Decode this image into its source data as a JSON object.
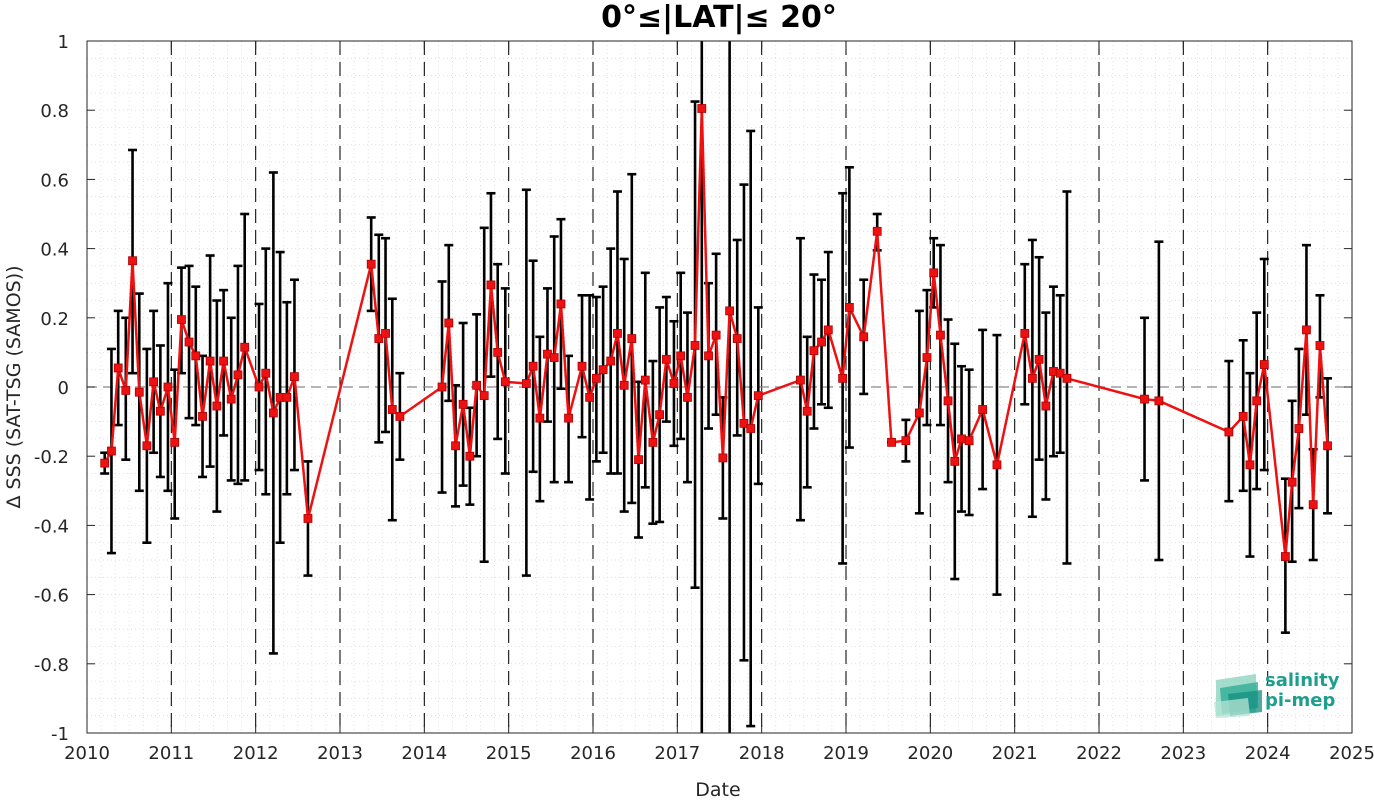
{
  "chart_data": {
    "type": "scatter",
    "title": "0°≤|LAT|≤ 20°",
    "xlabel": "Date",
    "ylabel": "Δ SSS (SAT-TSG (SAMOS))",
    "xlim": [
      2010,
      2025
    ],
    "ylim": [
      -1,
      1
    ],
    "x_ticks": [
      "2010",
      "2011",
      "2012",
      "2013",
      "2014",
      "2015",
      "2016",
      "2017",
      "2018",
      "2019",
      "2020",
      "2021",
      "2022",
      "2023",
      "2024",
      "2025"
    ],
    "y_ticks": [
      "1",
      "0.8",
      "0.6",
      "0.4",
      "0.2",
      "0",
      "-0.2",
      "-0.4",
      "-0.6",
      "-0.8",
      "-1"
    ],
    "grid": "on (dotted minor grid)",
    "year_separators": "dashed vertical lines at each year boundary",
    "zero_line": "dashed horizontal line at 0",
    "series_color": "#ee1111",
    "errorbar_color": "#000000",
    "marker": "square",
    "points": [
      {
        "x": "2010.21",
        "y": -0.22,
        "lo": -0.25,
        "hi": -0.19
      },
      {
        "x": "2010.29",
        "y": -0.185,
        "lo": -0.48,
        "hi": 0.11
      },
      {
        "x": "2010.37",
        "y": 0.055,
        "lo": -0.11,
        "hi": 0.22
      },
      {
        "x": "2010.46",
        "y": -0.01,
        "lo": -0.21,
        "hi": 0.2
      },
      {
        "x": "2010.54",
        "y": 0.365,
        "lo": 0.04,
        "hi": 0.685
      },
      {
        "x": "2010.62",
        "y": -0.015,
        "lo": -0.3,
        "hi": 0.27
      },
      {
        "x": "2010.71",
        "y": -0.17,
        "lo": -0.45,
        "hi": 0.11
      },
      {
        "x": "2010.79",
        "y": 0.015,
        "lo": -0.19,
        "hi": 0.22
      },
      {
        "x": "2010.87",
        "y": -0.07,
        "lo": -0.26,
        "hi": 0.12
      },
      {
        "x": "2010.96",
        "y": 0.0,
        "lo": -0.3,
        "hi": 0.3
      },
      {
        "x": "2011.04",
        "y": -0.16,
        "lo": -0.38,
        "hi": 0.05
      },
      {
        "x": "2011.12",
        "y": 0.195,
        "lo": 0.04,
        "hi": 0.345
      },
      {
        "x": "2011.21",
        "y": 0.13,
        "lo": -0.09,
        "hi": 0.35
      },
      {
        "x": "2011.29",
        "y": 0.09,
        "lo": -0.11,
        "hi": 0.29
      },
      {
        "x": "2011.37",
        "y": -0.085,
        "lo": -0.26,
        "hi": 0.09
      },
      {
        "x": "2011.46",
        "y": 0.075,
        "lo": -0.23,
        "hi": 0.38
      },
      {
        "x": "2011.54",
        "y": -0.055,
        "lo": -0.36,
        "hi": 0.25
      },
      {
        "x": "2011.62",
        "y": 0.075,
        "lo": -0.14,
        "hi": 0.28
      },
      {
        "x": "2011.71",
        "y": -0.035,
        "lo": -0.27,
        "hi": 0.2
      },
      {
        "x": "2011.79",
        "y": 0.035,
        "lo": -0.28,
        "hi": 0.35
      },
      {
        "x": "2011.87",
        "y": 0.115,
        "lo": -0.27,
        "hi": 0.5
      },
      {
        "x": "2012.04",
        "y": 0.0,
        "lo": -0.24,
        "hi": 0.24
      },
      {
        "x": "2012.12",
        "y": 0.04,
        "lo": -0.31,
        "hi": 0.4
      },
      {
        "x": "2012.21",
        "y": -0.075,
        "lo": -0.77,
        "hi": 0.62
      },
      {
        "x": "2012.29",
        "y": -0.03,
        "lo": -0.45,
        "hi": 0.39
      },
      {
        "x": "2012.37",
        "y": -0.03,
        "lo": -0.31,
        "hi": 0.245
      },
      {
        "x": "2012.46",
        "y": 0.03,
        "lo": -0.24,
        "hi": 0.31
      },
      {
        "x": "2012.62",
        "y": -0.38,
        "lo": -0.545,
        "hi": -0.215
      },
      {
        "x": "2013.37",
        "y": 0.355,
        "lo": 0.22,
        "hi": 0.49
      },
      {
        "x": "2013.46",
        "y": 0.14,
        "lo": -0.16,
        "hi": 0.44
      },
      {
        "x": "2013.54",
        "y": 0.155,
        "lo": -0.13,
        "hi": 0.43
      },
      {
        "x": "2013.62",
        "y": -0.065,
        "lo": -0.385,
        "hi": 0.255
      },
      {
        "x": "2013.71",
        "y": -0.085,
        "lo": -0.21,
        "hi": 0.04
      },
      {
        "x": "2014.21",
        "y": 0.0,
        "lo": -0.305,
        "hi": 0.305
      },
      {
        "x": "2014.29",
        "y": 0.185,
        "lo": -0.04,
        "hi": 0.41
      },
      {
        "x": "2014.37",
        "y": -0.17,
        "lo": -0.345,
        "hi": 0.005
      },
      {
        "x": "2014.46",
        "y": -0.05,
        "lo": -0.285,
        "hi": 0.185
      },
      {
        "x": "2014.54",
        "y": -0.2,
        "lo": -0.34,
        "hi": -0.06
      },
      {
        "x": "2014.62",
        "y": 0.005,
        "lo": -0.2,
        "hi": 0.21
      },
      {
        "x": "2014.71",
        "y": -0.025,
        "lo": -0.505,
        "hi": 0.46
      },
      {
        "x": "2014.79",
        "y": 0.295,
        "lo": 0.03,
        "hi": 0.56
      },
      {
        "x": "2014.87",
        "y": 0.1,
        "lo": -0.15,
        "hi": 0.355
      },
      {
        "x": "2014.96",
        "y": 0.015,
        "lo": -0.25,
        "hi": 0.285
      },
      {
        "x": "2015.21",
        "y": 0.01,
        "lo": -0.545,
        "hi": 0.57
      },
      {
        "x": "2015.29",
        "y": 0.06,
        "lo": -0.245,
        "hi": 0.365
      },
      {
        "x": "2015.37",
        "y": -0.09,
        "lo": -0.33,
        "hi": 0.145
      },
      {
        "x": "2015.46",
        "y": 0.095,
        "lo": -0.1,
        "hi": 0.285
      },
      {
        "x": "2015.54",
        "y": 0.085,
        "lo": -0.275,
        "hi": 0.435
      },
      {
        "x": "2015.62",
        "y": 0.24,
        "lo": -0.005,
        "hi": 0.485
      },
      {
        "x": "2015.71",
        "y": -0.09,
        "lo": -0.275,
        "hi": 0.09
      },
      {
        "x": "2015.87",
        "y": 0.06,
        "lo": -0.145,
        "hi": 0.265
      },
      {
        "x": "2015.96",
        "y": -0.03,
        "lo": -0.325,
        "hi": 0.265
      },
      {
        "x": "2016.04",
        "y": 0.025,
        "lo": -0.215,
        "hi": 0.26
      },
      {
        "x": "2016.12",
        "y": 0.05,
        "lo": -0.19,
        "hi": 0.29
      },
      {
        "x": "2016.21",
        "y": 0.075,
        "lo": -0.25,
        "hi": 0.4
      },
      {
        "x": "2016.29",
        "y": 0.155,
        "lo": -0.25,
        "hi": 0.565
      },
      {
        "x": "2016.37",
        "y": 0.005,
        "lo": -0.36,
        "hi": 0.37
      },
      {
        "x": "2016.46",
        "y": 0.14,
        "lo": -0.335,
        "hi": 0.615
      },
      {
        "x": "2016.54",
        "y": -0.21,
        "lo": -0.435,
        "hi": 0.015
      },
      {
        "x": "2016.62",
        "y": 0.02,
        "lo": -0.29,
        "hi": 0.33
      },
      {
        "x": "2016.71",
        "y": -0.16,
        "lo": -0.395,
        "hi": 0.075
      },
      {
        "x": "2016.79",
        "y": -0.08,
        "lo": -0.39,
        "hi": 0.23
      },
      {
        "x": "2016.87",
        "y": 0.08,
        "lo": -0.1,
        "hi": 0.26
      },
      {
        "x": "2016.96",
        "y": 0.01,
        "lo": -0.17,
        "hi": 0.19
      },
      {
        "x": "2017.04",
        "y": 0.09,
        "lo": -0.15,
        "hi": 0.33
      },
      {
        "x": "2017.12",
        "y": -0.03,
        "lo": -0.275,
        "hi": 0.215
      },
      {
        "x": "2017.21",
        "y": 0.12,
        "lo": -0.58,
        "hi": 0.825
      },
      {
        "x": "2017.29",
        "y": 0.805,
        "lo": -1.0,
        "hi": 1.0
      },
      {
        "x": "2017.37",
        "y": 0.09,
        "lo": -0.12,
        "hi": 0.3
      },
      {
        "x": "2017.46",
        "y": 0.15,
        "lo": -0.08,
        "hi": 0.385
      },
      {
        "x": "2017.54",
        "y": -0.205,
        "lo": -0.38,
        "hi": -0.03
      },
      {
        "x": "2017.62",
        "y": 0.22,
        "lo": -1.0,
        "hi": 1.0
      },
      {
        "x": "2017.71",
        "y": 0.14,
        "lo": -0.14,
        "hi": 0.425
      },
      {
        "x": "2017.79",
        "y": -0.105,
        "lo": -0.79,
        "hi": 0.585
      },
      {
        "x": "2017.87",
        "y": -0.12,
        "lo": -0.98,
        "hi": 0.74
      },
      {
        "x": "2017.96",
        "y": -0.025,
        "lo": -0.28,
        "hi": 0.23
      },
      {
        "x": "2018.46",
        "y": 0.02,
        "lo": -0.385,
        "hi": 0.43
      },
      {
        "x": "2018.54",
        "y": -0.07,
        "lo": -0.29,
        "hi": 0.145
      },
      {
        "x": "2018.62",
        "y": 0.105,
        "lo": -0.12,
        "hi": 0.325
      },
      {
        "x": "2018.71",
        "y": 0.13,
        "lo": -0.05,
        "hi": 0.31
      },
      {
        "x": "2018.79",
        "y": 0.165,
        "lo": -0.06,
        "hi": 0.39
      },
      {
        "x": "2018.96",
        "y": 0.025,
        "lo": -0.51,
        "hi": 0.56
      },
      {
        "x": "2019.04",
        "y": 0.23,
        "lo": -0.175,
        "hi": 0.635
      },
      {
        "x": "2019.21",
        "y": 0.145,
        "lo": -0.02,
        "hi": 0.31
      },
      {
        "x": "2019.37",
        "y": 0.45,
        "lo": 0.395,
        "hi": 0.5
      },
      {
        "x": "2019.54",
        "y": -0.16,
        "lo": -0.16,
        "hi": -0.16
      },
      {
        "x": "2019.71",
        "y": -0.155,
        "lo": -0.215,
        "hi": -0.095
      },
      {
        "x": "2019.87",
        "y": -0.075,
        "lo": -0.365,
        "hi": 0.22
      },
      {
        "x": "2019.96",
        "y": 0.085,
        "lo": -0.11,
        "hi": 0.28
      },
      {
        "x": "2020.04",
        "y": 0.33,
        "lo": 0.23,
        "hi": 0.43
      },
      {
        "x": "2020.12",
        "y": 0.15,
        "lo": -0.11,
        "hi": 0.41
      },
      {
        "x": "2020.21",
        "y": -0.04,
        "lo": -0.275,
        "hi": 0.195
      },
      {
        "x": "2020.29",
        "y": -0.215,
        "lo": -0.555,
        "hi": 0.125
      },
      {
        "x": "2020.37",
        "y": -0.15,
        "lo": -0.36,
        "hi": 0.06
      },
      {
        "x": "2020.46",
        "y": -0.155,
        "lo": -0.37,
        "hi": 0.05
      },
      {
        "x": "2020.62",
        "y": -0.065,
        "lo": -0.295,
        "hi": 0.165
      },
      {
        "x": "2020.79",
        "y": -0.225,
        "lo": -0.6,
        "hi": 0.15
      },
      {
        "x": "2021.12",
        "y": 0.155,
        "lo": -0.05,
        "hi": 0.355
      },
      {
        "x": "2021.21",
        "y": 0.025,
        "lo": -0.375,
        "hi": 0.425
      },
      {
        "x": "2021.29",
        "y": 0.08,
        "lo": -0.21,
        "hi": 0.375
      },
      {
        "x": "2021.37",
        "y": -0.055,
        "lo": -0.325,
        "hi": 0.215
      },
      {
        "x": "2021.46",
        "y": 0.045,
        "lo": -0.2,
        "hi": 0.29
      },
      {
        "x": "2021.54",
        "y": 0.04,
        "lo": -0.19,
        "hi": 0.265
      },
      {
        "x": "2021.62",
        "y": 0.025,
        "lo": -0.51,
        "hi": 0.565
      },
      {
        "x": "2022.54",
        "y": -0.035,
        "lo": -0.27,
        "hi": 0.2
      },
      {
        "x": "2022.71",
        "y": -0.04,
        "lo": -0.5,
        "hi": 0.42
      },
      {
        "x": "2023.54",
        "y": -0.13,
        "lo": -0.33,
        "hi": 0.075
      },
      {
        "x": "2023.71",
        "y": -0.085,
        "lo": -0.3,
        "hi": 0.135
      },
      {
        "x": "2023.79",
        "y": -0.225,
        "lo": -0.49,
        "hi": 0.04
      },
      {
        "x": "2023.87",
        "y": -0.04,
        "lo": -0.295,
        "hi": 0.215
      },
      {
        "x": "2023.96",
        "y": 0.065,
        "lo": -0.24,
        "hi": 0.37
      },
      {
        "x": "2024.21",
        "y": -0.49,
        "lo": -0.71,
        "hi": -0.265
      },
      {
        "x": "2024.29",
        "y": -0.275,
        "lo": -0.505,
        "hi": -0.04
      },
      {
        "x": "2024.37",
        "y": -0.12,
        "lo": -0.35,
        "hi": 0.11
      },
      {
        "x": "2024.46",
        "y": 0.165,
        "lo": -0.08,
        "hi": 0.41
      },
      {
        "x": "2024.54",
        "y": -0.34,
        "lo": -0.5,
        "hi": -0.18
      },
      {
        "x": "2024.62",
        "y": 0.12,
        "lo": -0.03,
        "hi": 0.265
      },
      {
        "x": "2024.71",
        "y": -0.17,
        "lo": -0.365,
        "hi": 0.025
      }
    ]
  },
  "logo": {
    "line1": "salinity",
    "line2": "pi-mep",
    "color": "#1f9e8e"
  }
}
